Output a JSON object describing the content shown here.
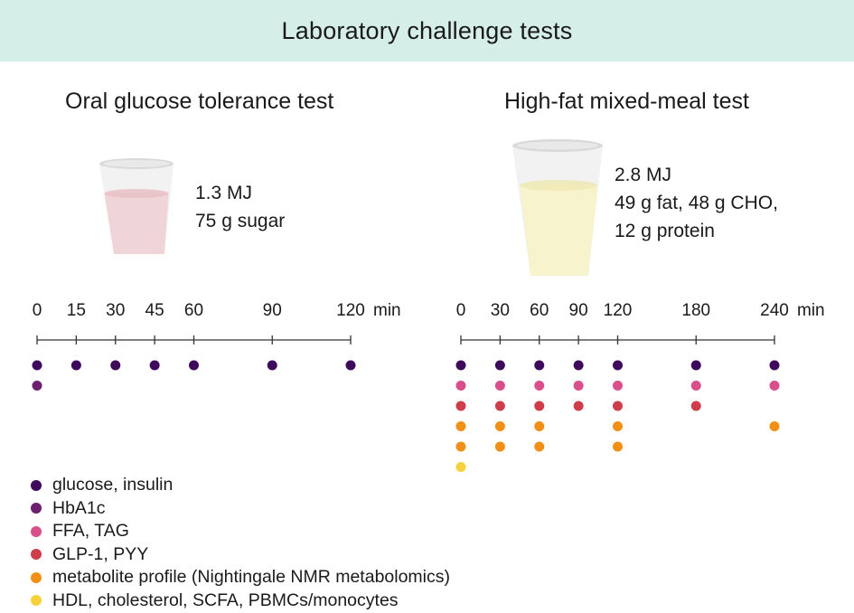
{
  "header": {
    "title": "Laboratory challenge tests"
  },
  "ogtt": {
    "title": "Oral glucose tolerance test",
    "desc_line1": "1.3 MJ",
    "desc_line2": "75 g sugar",
    "unit": "min",
    "ticks": [
      0,
      15,
      30,
      45,
      60,
      90,
      120
    ],
    "tick_labels": [
      "0",
      "15",
      "30",
      "45",
      "60",
      "90",
      "120"
    ],
    "drink_color": "#f0d5d8",
    "measurements": [
      {
        "marker": "glucose",
        "times": [
          0,
          15,
          30,
          45,
          60,
          90,
          120
        ]
      },
      {
        "marker": "hba1c",
        "times": [
          0
        ]
      }
    ]
  },
  "hfmm": {
    "title": "High-fat mixed-meal test",
    "desc_line1": "2.8 MJ",
    "desc_line2": "49 g fat, 48 g CHO,",
    "desc_line3": "12 g protein",
    "unit": "min",
    "ticks": [
      0,
      30,
      60,
      90,
      120,
      180,
      240
    ],
    "tick_labels": [
      "0",
      "30",
      "60",
      "90",
      "120",
      "180",
      "240"
    ],
    "drink_color": "#f7f3cc",
    "measurements": [
      {
        "marker": "glucose",
        "times": [
          0,
          30,
          60,
          90,
          120,
          180,
          240
        ]
      },
      {
        "marker": "ffa",
        "times": [
          0,
          30,
          60,
          90,
          120,
          180,
          240
        ]
      },
      {
        "marker": "glp",
        "times": [
          0,
          30,
          60,
          90,
          120,
          180
        ]
      },
      {
        "marker": "metabolite",
        "times": [
          0,
          30,
          60,
          120,
          240
        ]
      },
      {
        "marker": "metabolite",
        "times": [
          0,
          30,
          60,
          120
        ]
      },
      {
        "marker": "hdl",
        "times": [
          0
        ]
      }
    ]
  },
  "colors": {
    "glucose": "#3d0a5c",
    "hba1c": "#6b1f6e",
    "ffa": "#d94f8c",
    "glp": "#cf3d4a",
    "metabolite": "#f28f16",
    "hdl": "#f5d23c",
    "banner": "#d6eee8"
  },
  "legend": [
    {
      "marker": "glucose",
      "label": "glucose, insulin"
    },
    {
      "marker": "hba1c",
      "label": "HbA1c"
    },
    {
      "marker": "ffa",
      "label": "FFA, TAG"
    },
    {
      "marker": "glp",
      "label": "GLP-1, PYY"
    },
    {
      "marker": "metabolite",
      "label": "metabolite profile (Nightingale NMR metabolomics)"
    },
    {
      "marker": "hdl",
      "label": "HDL, cholesterol, SCFA, PBMCs/monocytes"
    }
  ]
}
